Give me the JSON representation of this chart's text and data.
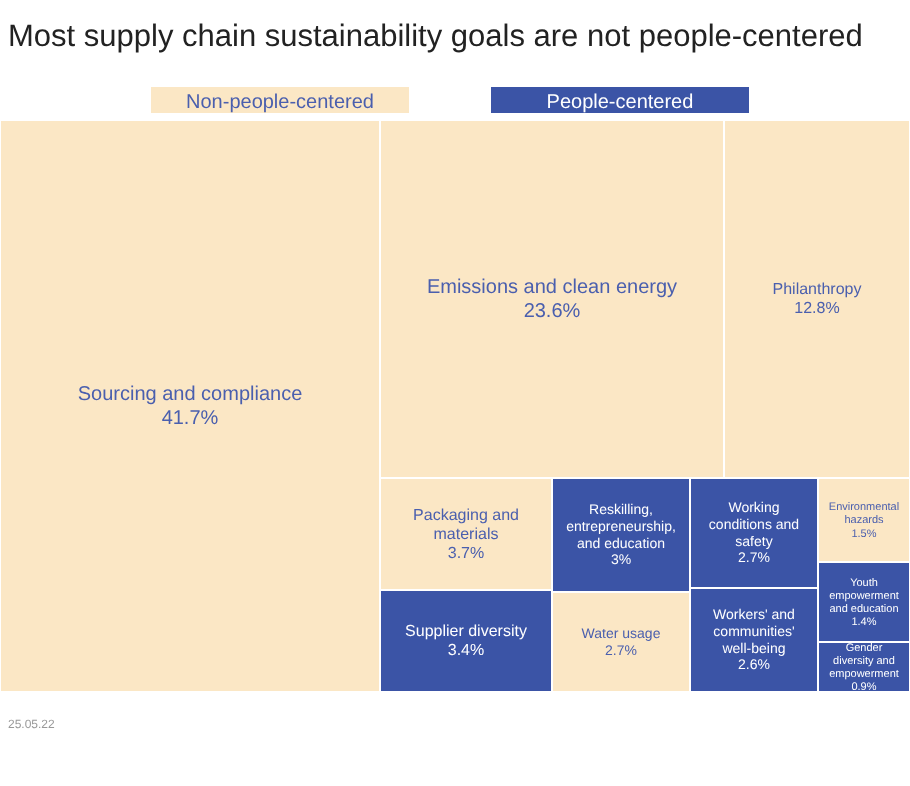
{
  "chart_data": {
    "type": "other",
    "title": "Most supply chain sustainability goals are not people-centered",
    "legend": "top",
    "categories": [
      "Sourcing and compliance",
      "Emissions and clean energy",
      "Philanthropy",
      "Packaging and materials",
      "Supplier diversity",
      "Reskilling, entrepreneurship, and education",
      "Water usage",
      "Working conditions and safety",
      "Workers' and communities' well-being",
      "Environmental hazards",
      "Youth empowerment and education",
      "Gender diversity and empowerment"
    ],
    "series": [
      {
        "name": "Non-people-centered",
        "color": "#fbe7c5",
        "values": [
          41.7,
          23.6,
          12.8,
          3.7,
          null,
          null,
          2.7,
          null,
          null,
          1.5,
          null,
          null
        ],
        "value_labels": [
          "41.7%",
          "23.6%",
          "12.8%",
          "3.7%",
          null,
          null,
          "2.7%",
          null,
          null,
          "1.5%",
          null,
          null
        ]
      },
      {
        "name": "People-centered",
        "color": "#3b54a6",
        "values": [
          null,
          null,
          null,
          null,
          3.4,
          3,
          null,
          2.7,
          2.6,
          null,
          1.4,
          0.9
        ],
        "value_labels": [
          null,
          null,
          null,
          null,
          "3.4%",
          "3%",
          null,
          "2.7%",
          "2.6%",
          null,
          "1.4%",
          "0.9%"
        ]
      }
    ],
    "annotations": [
      "25.05.22"
    ]
  }
}
